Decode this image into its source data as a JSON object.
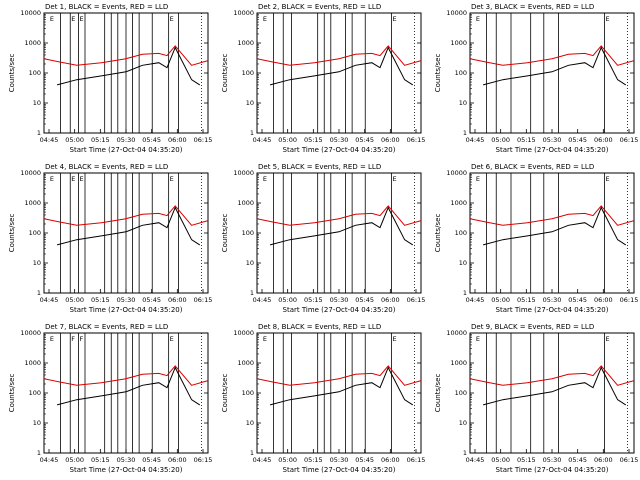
{
  "colors": {
    "background": "#ffffff",
    "axes": "#000000",
    "events": "#000000",
    "lld": "#dd0000"
  },
  "chart_data": [
    {
      "type": "line",
      "title": "Det 1, BLACK = Events, RED = LLD",
      "xlabel": "Start Time (27-Oct-04 04:35:20)",
      "ylabel": "Counts/sec",
      "y_scale": "log",
      "ylim": [
        1,
        10000
      ],
      "x_ticks": [
        "04:45",
        "05:00",
        "05:15",
        "05:30",
        "05:45",
        "06:00",
        "06:15"
      ],
      "y_ticks": [
        "1",
        "10",
        "100",
        "1000",
        "10000"
      ],
      "flag_labels": [
        "E",
        "E",
        "E",
        "E"
      ],
      "series": [
        {
          "name": "Events",
          "x": [
            0.08,
            0.2,
            0.35,
            0.5,
            0.6,
            0.7,
            0.75,
            0.8,
            0.9,
            0.95
          ],
          "values": [
            40,
            60,
            80,
            110,
            180,
            220,
            150,
            700,
            60,
            40
          ]
        },
        {
          "name": "LLD",
          "x": [
            0,
            0.1,
            0.2,
            0.35,
            0.5,
            0.6,
            0.7,
            0.75,
            0.8,
            0.9,
            1.0
          ],
          "values": [
            300,
            230,
            180,
            220,
            300,
            420,
            450,
            380,
            800,
            180,
            260
          ]
        }
      ]
    },
    {
      "type": "line",
      "title": "Det 2, BLACK = Events, RED = LLD",
      "xlabel": "Start Time (27-Oct-04 04:35:20)",
      "ylabel": "Counts/sec",
      "y_scale": "log",
      "ylim": [
        1,
        10000
      ],
      "x_ticks": [
        "04:45",
        "05:00",
        "05:15",
        "05:30",
        "05:45",
        "06:00",
        "06:15"
      ],
      "y_ticks": [
        "1",
        "10",
        "100",
        "1000",
        "10000"
      ],
      "flag_labels": [
        "E",
        "E"
      ],
      "series": [
        {
          "name": "Events",
          "x": [
            0.08,
            0.2,
            0.35,
            0.5,
            0.6,
            0.7,
            0.75,
            0.8,
            0.9,
            0.95
          ],
          "values": [
            40,
            60,
            80,
            110,
            180,
            220,
            150,
            700,
            60,
            40
          ]
        },
        {
          "name": "LLD",
          "x": [
            0,
            0.1,
            0.2,
            0.35,
            0.5,
            0.6,
            0.7,
            0.75,
            0.8,
            0.9,
            1.0
          ],
          "values": [
            300,
            230,
            180,
            220,
            300,
            420,
            450,
            380,
            800,
            180,
            260
          ]
        }
      ]
    },
    {
      "type": "line",
      "title": "Det 3, BLACK = Events, RED = LLD",
      "xlabel": "Start Time (27-Oct-04 04:35:20)",
      "ylabel": "Counts/sec",
      "y_scale": "log",
      "ylim": [
        1,
        10000
      ],
      "x_ticks": [
        "04:45",
        "05:00",
        "05:15",
        "05:30",
        "05:45",
        "06:00",
        "06:15"
      ],
      "y_ticks": [
        "1",
        "10",
        "100",
        "1000",
        "10000"
      ],
      "flag_labels": [
        "E",
        "E"
      ],
      "series": [
        {
          "name": "Events",
          "x": [
            0.08,
            0.2,
            0.35,
            0.5,
            0.6,
            0.7,
            0.75,
            0.8,
            0.9,
            0.95
          ],
          "values": [
            40,
            60,
            80,
            110,
            180,
            220,
            150,
            700,
            60,
            40
          ]
        },
        {
          "name": "LLD",
          "x": [
            0,
            0.1,
            0.2,
            0.35,
            0.5,
            0.6,
            0.7,
            0.75,
            0.8,
            0.9,
            1.0
          ],
          "values": [
            300,
            230,
            180,
            220,
            300,
            420,
            450,
            380,
            800,
            180,
            260
          ]
        }
      ]
    },
    {
      "type": "line",
      "title": "Det 4, BLACK = Events, RED = LLD",
      "xlabel": "Start Time (27-Oct-04 04:35:20)",
      "ylabel": "Counts/sec",
      "y_scale": "log",
      "ylim": [
        1,
        10000
      ],
      "x_ticks": [
        "04:45",
        "05:00",
        "05:15",
        "05:30",
        "05:45",
        "06:00",
        "06:15"
      ],
      "y_ticks": [
        "1",
        "10",
        "100",
        "1000",
        "10000"
      ],
      "flag_labels": [
        "E",
        "E",
        "E",
        "E"
      ],
      "series": [
        {
          "name": "Events",
          "x": [
            0.08,
            0.2,
            0.35,
            0.5,
            0.6,
            0.7,
            0.75,
            0.8,
            0.9,
            0.95
          ],
          "values": [
            40,
            60,
            80,
            110,
            180,
            220,
            150,
            700,
            60,
            40
          ]
        },
        {
          "name": "LLD",
          "x": [
            0,
            0.1,
            0.2,
            0.35,
            0.5,
            0.6,
            0.7,
            0.75,
            0.8,
            0.9,
            1.0
          ],
          "values": [
            300,
            230,
            180,
            220,
            300,
            420,
            450,
            380,
            800,
            180,
            260
          ]
        }
      ]
    },
    {
      "type": "line",
      "title": "Det 5, BLACK = Events, RED = LLD",
      "xlabel": "Start Time (27-Oct-04 04:35:20)",
      "ylabel": "Counts/sec",
      "y_scale": "log",
      "ylim": [
        1,
        10000
      ],
      "x_ticks": [
        "04:45",
        "05:00",
        "05:15",
        "05:30",
        "05:45",
        "06:00",
        "06:15"
      ],
      "y_ticks": [
        "1",
        "10",
        "100",
        "1000",
        "10000"
      ],
      "flag_labels": [
        "E",
        "E"
      ],
      "series": [
        {
          "name": "Events",
          "x": [
            0.08,
            0.2,
            0.35,
            0.5,
            0.6,
            0.7,
            0.75,
            0.8,
            0.9,
            0.95
          ],
          "values": [
            40,
            60,
            80,
            110,
            180,
            220,
            150,
            700,
            60,
            40
          ]
        },
        {
          "name": "LLD",
          "x": [
            0,
            0.1,
            0.2,
            0.35,
            0.5,
            0.6,
            0.7,
            0.75,
            0.8,
            0.9,
            1.0
          ],
          "values": [
            300,
            230,
            180,
            220,
            300,
            420,
            450,
            380,
            800,
            180,
            260
          ]
        }
      ]
    },
    {
      "type": "line",
      "title": "Det 6, BLACK = Events, RED = LLD",
      "xlabel": "Start Time (27-Oct-04 04:35:20)",
      "ylabel": "Counts/sec",
      "y_scale": "log",
      "ylim": [
        1,
        10000
      ],
      "x_ticks": [
        "04:45",
        "05:00",
        "05:15",
        "05:30",
        "05:45",
        "06:00",
        "06:15"
      ],
      "y_ticks": [
        "1",
        "10",
        "100",
        "1000",
        "10000"
      ],
      "flag_labels": [
        "E",
        "E"
      ],
      "series": [
        {
          "name": "Events",
          "x": [
            0.08,
            0.2,
            0.35,
            0.5,
            0.6,
            0.7,
            0.75,
            0.8,
            0.9,
            0.95
          ],
          "values": [
            40,
            60,
            80,
            110,
            180,
            220,
            150,
            700,
            60,
            40
          ]
        },
        {
          "name": "LLD",
          "x": [
            0,
            0.1,
            0.2,
            0.35,
            0.5,
            0.6,
            0.7,
            0.75,
            0.8,
            0.9,
            1.0
          ],
          "values": [
            300,
            230,
            180,
            220,
            300,
            420,
            450,
            380,
            800,
            180,
            260
          ]
        }
      ]
    },
    {
      "type": "line",
      "title": "Det 7, BLACK = Events, RED = LLD",
      "xlabel": "Start Time (27-Oct-04 04:35:20)",
      "ylabel": "Counts/sec",
      "y_scale": "log",
      "ylim": [
        1,
        10000
      ],
      "x_ticks": [
        "04:45",
        "05:00",
        "05:15",
        "05:30",
        "05:45",
        "06:00",
        "06:15"
      ],
      "y_ticks": [
        "1",
        "10",
        "100",
        "1000",
        "10000"
      ],
      "flag_labels": [
        "E",
        "F",
        "F",
        "E"
      ],
      "series": [
        {
          "name": "Events",
          "x": [
            0.08,
            0.2,
            0.35,
            0.5,
            0.6,
            0.7,
            0.75,
            0.8,
            0.9,
            0.95
          ],
          "values": [
            40,
            60,
            80,
            110,
            180,
            220,
            150,
            700,
            60,
            40
          ]
        },
        {
          "name": "LLD",
          "x": [
            0,
            0.1,
            0.2,
            0.35,
            0.5,
            0.6,
            0.7,
            0.75,
            0.8,
            0.9,
            1.0
          ],
          "values": [
            300,
            230,
            180,
            220,
            300,
            420,
            450,
            380,
            800,
            180,
            260
          ]
        }
      ]
    },
    {
      "type": "line",
      "title": "Det 8, BLACK = Events, RED = LLD",
      "xlabel": "Start Time (27-Oct-04 04:35:20)",
      "ylabel": "Counts/sec",
      "y_scale": "log",
      "ylim": [
        1,
        10000
      ],
      "x_ticks": [
        "04:45",
        "05:00",
        "05:15",
        "05:30",
        "05:45",
        "06:00",
        "06:15"
      ],
      "y_ticks": [
        "1",
        "10",
        "100",
        "1000",
        "10000"
      ],
      "flag_labels": [
        "E",
        "E"
      ],
      "series": [
        {
          "name": "Events",
          "x": [
            0.08,
            0.2,
            0.35,
            0.5,
            0.6,
            0.7,
            0.75,
            0.8,
            0.9,
            0.95
          ],
          "values": [
            40,
            60,
            80,
            110,
            180,
            220,
            150,
            700,
            60,
            40
          ]
        },
        {
          "name": "LLD",
          "x": [
            0,
            0.1,
            0.2,
            0.35,
            0.5,
            0.6,
            0.7,
            0.75,
            0.8,
            0.9,
            1.0
          ],
          "values": [
            300,
            230,
            180,
            220,
            300,
            420,
            450,
            380,
            800,
            180,
            260
          ]
        }
      ]
    },
    {
      "type": "line",
      "title": "Det 9, BLACK = Events, RED = LLD",
      "xlabel": "Start Time (27-Oct-04 04:35:20)",
      "ylabel": "Counts/sec",
      "y_scale": "log",
      "ylim": [
        1,
        10000
      ],
      "x_ticks": [
        "04:45",
        "05:00",
        "05:15",
        "05:30",
        "05:45",
        "06:00",
        "06:15"
      ],
      "y_ticks": [
        "1",
        "10",
        "100",
        "1000",
        "10000"
      ],
      "flag_labels": [
        "E",
        "E"
      ],
      "series": [
        {
          "name": "Events",
          "x": [
            0.08,
            0.2,
            0.35,
            0.5,
            0.6,
            0.7,
            0.75,
            0.8,
            0.9,
            0.95
          ],
          "values": [
            40,
            60,
            80,
            110,
            180,
            220,
            150,
            700,
            60,
            40
          ]
        },
        {
          "name": "LLD",
          "x": [
            0,
            0.1,
            0.2,
            0.35,
            0.5,
            0.6,
            0.7,
            0.75,
            0.8,
            0.9,
            1.0
          ],
          "values": [
            300,
            230,
            180,
            220,
            300,
            420,
            450,
            380,
            800,
            180,
            260
          ]
        }
      ]
    }
  ]
}
